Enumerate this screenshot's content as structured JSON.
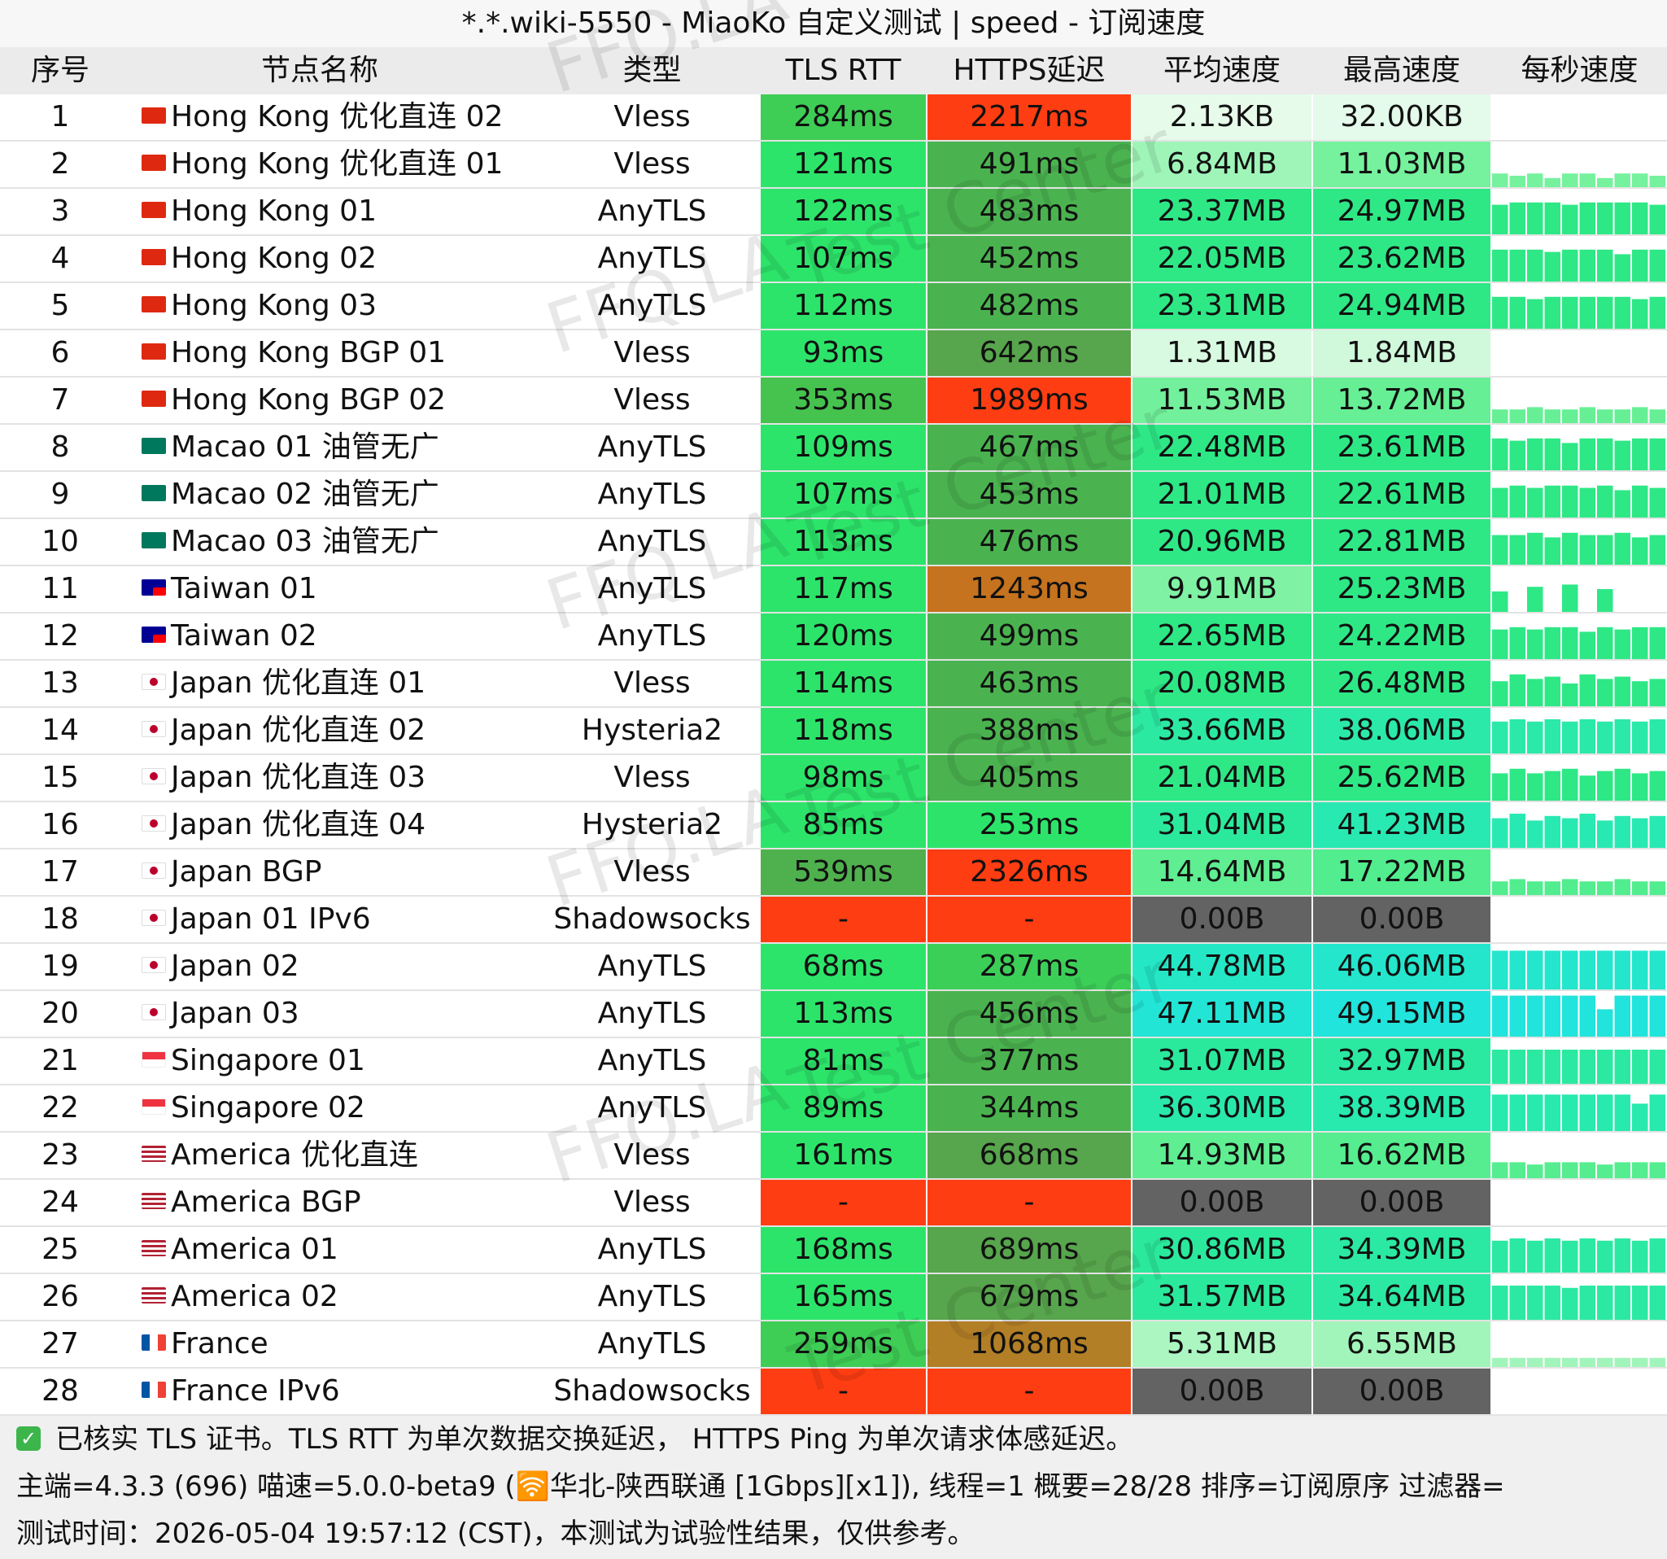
{
  "window": {
    "title": "*.*.wiki-5550 - MiaoKo 自定义测试 | speed - 订阅速度"
  },
  "headers": [
    "序号",
    "节点名称",
    "类型",
    "TLS RTT",
    "HTTPS延迟",
    "平均速度",
    "最高速度",
    "每秒速度"
  ],
  "watermark": [
    "FFQ.LA",
    "Test Center"
  ],
  "colors": {
    "red": "#fe3d12",
    "gray": "#636363",
    "sparkline": "#2ee886"
  },
  "rows": [
    {
      "idx": "1",
      "flag": "hk",
      "name": "Hong Kong 优化直连 02",
      "type": "Vless",
      "tls": "284ms",
      "tls_color": "#3ecd55",
      "https": "2217ms",
      "https_color": "#fe3d12",
      "avg": "2.13KB",
      "avg_color": "#e6fbea",
      "max": "32.00KB",
      "max_color": "#e4faea",
      "spark": []
    },
    {
      "idx": "2",
      "flag": "hk",
      "name": "Hong Kong 优化直连 01",
      "type": "Vless",
      "tls": "121ms",
      "tls_color": "#2de46a",
      "https": "491ms",
      "https_color": "#4ab34f",
      "avg": "6.84MB",
      "avg_color": "#9ff5b8",
      "max": "11.03MB",
      "max_color": "#76f19d",
      "spark": [
        0.3,
        0.25,
        0.3,
        0.2,
        0.3,
        0.3,
        0.2,
        0.3,
        0.3,
        0.25
      ]
    },
    {
      "idx": "3",
      "flag": "hk",
      "name": "Hong Kong 01",
      "type": "AnyTLS",
      "tls": "122ms",
      "tls_color": "#2de46a",
      "https": "483ms",
      "https_color": "#4ab34f",
      "avg": "23.37MB",
      "avg_color": "#2ee886",
      "max": "24.97MB",
      "max_color": "#2ee886",
      "spark": [
        0.65,
        0.7,
        0.7,
        0.7,
        0.65,
        0.7,
        0.7,
        0.7,
        0.7,
        0.65
      ]
    },
    {
      "idx": "4",
      "flag": "hk",
      "name": "Hong Kong 02",
      "type": "AnyTLS",
      "tls": "107ms",
      "tls_color": "#2de46a",
      "https": "452ms",
      "https_color": "#4ab34f",
      "avg": "22.05MB",
      "avg_color": "#2ee886",
      "max": "23.62MB",
      "max_color": "#2ee886",
      "spark": [
        0.7,
        0.7,
        0.7,
        0.65,
        0.7,
        0.7,
        0.7,
        0.6,
        0.7,
        0.7
      ]
    },
    {
      "idx": "5",
      "flag": "hk",
      "name": "Hong Kong 03",
      "type": "AnyTLS",
      "tls": "112ms",
      "tls_color": "#2de46a",
      "https": "482ms",
      "https_color": "#4ab34f",
      "avg": "23.31MB",
      "avg_color": "#2ee886",
      "max": "24.94MB",
      "max_color": "#2ee886",
      "spark": [
        0.7,
        0.7,
        0.65,
        0.7,
        0.7,
        0.7,
        0.7,
        0.7,
        0.65,
        0.7
      ]
    },
    {
      "idx": "6",
      "flag": "hk",
      "name": "Hong Kong BGP 01",
      "type": "Vless",
      "tls": "93ms",
      "tls_color": "#2de46a",
      "https": "642ms",
      "https_color": "#57a54c",
      "avg": "1.31MB",
      "avg_color": "#d8faE1",
      "max": "1.84MB",
      "max_color": "#d0f8db",
      "spark": []
    },
    {
      "idx": "7",
      "flag": "hk",
      "name": "Hong Kong BGP 02",
      "type": "Vless",
      "tls": "353ms",
      "tls_color": "#45c34e",
      "https": "1989ms",
      "https_color": "#fe3d12",
      "avg": "11.53MB",
      "avg_color": "#72f09b",
      "max": "13.72MB",
      "max_color": "#66ef94",
      "spark": [
        0.3,
        0.3,
        0.35,
        0.3,
        0.3,
        0.35,
        0.3,
        0.3,
        0.35,
        0.3
      ]
    },
    {
      "idx": "8",
      "flag": "mo",
      "name": "Macao 01 油管无广",
      "type": "AnyTLS",
      "tls": "109ms",
      "tls_color": "#2de46a",
      "https": "467ms",
      "https_color": "#4ab34f",
      "avg": "22.48MB",
      "avg_color": "#2ee886",
      "max": "23.61MB",
      "max_color": "#2ee886",
      "spark": [
        0.7,
        0.65,
        0.7,
        0.7,
        0.6,
        0.7,
        0.7,
        0.65,
        0.7,
        0.7
      ]
    },
    {
      "idx": "9",
      "flag": "mo",
      "name": "Macao 02 油管无广",
      "type": "AnyTLS",
      "tls": "107ms",
      "tls_color": "#2de46a",
      "https": "453ms",
      "https_color": "#4ab34f",
      "avg": "21.01MB",
      "avg_color": "#2ee886",
      "max": "22.61MB",
      "max_color": "#2ee886",
      "spark": [
        0.65,
        0.7,
        0.65,
        0.7,
        0.7,
        0.65,
        0.7,
        0.6,
        0.7,
        0.65
      ]
    },
    {
      "idx": "10",
      "flag": "mo",
      "name": "Macao 03 油管无广",
      "type": "AnyTLS",
      "tls": "113ms",
      "tls_color": "#2de46a",
      "https": "476ms",
      "https_color": "#4ab34f",
      "avg": "20.96MB",
      "avg_color": "#2ee886",
      "max": "22.81MB",
      "max_color": "#2ee886",
      "spark": [
        0.65,
        0.65,
        0.7,
        0.6,
        0.7,
        0.65,
        0.65,
        0.7,
        0.6,
        0.65
      ]
    },
    {
      "idx": "11",
      "flag": "tw",
      "name": "Taiwan 01",
      "type": "AnyTLS",
      "tls": "117ms",
      "tls_color": "#2de46a",
      "https": "1243ms",
      "https_color": "#c5731f",
      "avg": "9.91MB",
      "avg_color": "#7ff2a4",
      "max": "25.23MB",
      "max_color": "#2ee886",
      "spark": [
        0.45,
        0.0,
        0.55,
        0.0,
        0.6,
        0.0,
        0.5,
        0.0,
        0.0,
        0.0
      ]
    },
    {
      "idx": "12",
      "flag": "tw",
      "name": "Taiwan 02",
      "type": "AnyTLS",
      "tls": "120ms",
      "tls_color": "#2de46a",
      "https": "499ms",
      "https_color": "#4ab34f",
      "avg": "22.65MB",
      "avg_color": "#2ee886",
      "max": "24.22MB",
      "max_color": "#2ee886",
      "spark": [
        0.65,
        0.7,
        0.65,
        0.7,
        0.7,
        0.6,
        0.7,
        0.65,
        0.7,
        0.7
      ]
    },
    {
      "idx": "13",
      "flag": "jp",
      "name": "Japan 优化直连 01",
      "type": "Vless",
      "tls": "114ms",
      "tls_color": "#2de46a",
      "https": "463ms",
      "https_color": "#4ab34f",
      "avg": "20.08MB",
      "avg_color": "#2ee886",
      "max": "26.48MB",
      "max_color": "#2ee886",
      "spark": [
        0.55,
        0.7,
        0.6,
        0.65,
        0.5,
        0.7,
        0.6,
        0.65,
        0.55,
        0.6
      ]
    },
    {
      "idx": "14",
      "flag": "jp",
      "name": "Japan 优化直连 02",
      "type": "Hysteria2",
      "tls": "118ms",
      "tls_color": "#2de46a",
      "https": "388ms",
      "https_color": "#4ab34f",
      "avg": "33.66MB",
      "avg_color": "#2be9a1",
      "max": "38.06MB",
      "max_color": "#2be9a8",
      "spark": [
        0.7,
        0.75,
        0.7,
        0.75,
        0.7,
        0.75,
        0.7,
        0.75,
        0.7,
        0.75
      ]
    },
    {
      "idx": "15",
      "flag": "jp",
      "name": "Japan 优化直连 03",
      "type": "Vless",
      "tls": "98ms",
      "tls_color": "#2de46a",
      "https": "405ms",
      "https_color": "#4ab34f",
      "avg": "21.04MB",
      "avg_color": "#2ee886",
      "max": "25.62MB",
      "max_color": "#2ee886",
      "spark": [
        0.6,
        0.7,
        0.6,
        0.65,
        0.7,
        0.55,
        0.65,
        0.7,
        0.6,
        0.65
      ]
    },
    {
      "idx": "16",
      "flag": "jp",
      "name": "Japan 优化直连 04",
      "type": "Hysteria2",
      "tls": "85ms",
      "tls_color": "#2de46a",
      "https": "253ms",
      "https_color": "#2de46a",
      "avg": "31.04MB",
      "avg_color": "#2be99c",
      "max": "41.23MB",
      "max_color": "#29e9b2",
      "spark": [
        0.65,
        0.75,
        0.6,
        0.7,
        0.65,
        0.75,
        0.6,
        0.7,
        0.65,
        0.7
      ]
    },
    {
      "idx": "17",
      "flag": "jp",
      "name": "Japan BGP",
      "type": "Vless",
      "tls": "539ms",
      "tls_color": "#4fb14e",
      "https": "2326ms",
      "https_color": "#fe3d12",
      "avg": "14.64MB",
      "avg_color": "#5fee91",
      "max": "17.22MB",
      "max_color": "#52ed8e",
      "spark": [
        0.3,
        0.35,
        0.3,
        0.3,
        0.35,
        0.3,
        0.3,
        0.35,
        0.3,
        0.3
      ]
    },
    {
      "idx": "18",
      "flag": "jp",
      "name": "Japan 01 IPv6",
      "type": "Shadowsocks",
      "tls": "-",
      "tls_color": "#fe3d12",
      "https": "-",
      "https_color": "#fe3d12",
      "avg": "0.00B",
      "avg_color": "#636363",
      "max": "0.00B",
      "max_color": "#636363",
      "spark": []
    },
    {
      "idx": "19",
      "flag": "jp",
      "name": "Japan 02",
      "type": "AnyTLS",
      "tls": "68ms",
      "tls_color": "#2de46a",
      "https": "287ms",
      "https_color": "#3ccf58",
      "avg": "44.78MB",
      "avg_color": "#24e7c6",
      "max": "46.06MB",
      "max_color": "#23e6cd",
      "spark": [
        0.85,
        0.85,
        0.85,
        0.85,
        0.85,
        0.85,
        0.85,
        0.85,
        0.85,
        0.85
      ]
    },
    {
      "idx": "20",
      "flag": "jp",
      "name": "Japan 03",
      "type": "AnyTLS",
      "tls": "113ms",
      "tls_color": "#2de46a",
      "https": "456ms",
      "https_color": "#4ab34f",
      "avg": "47.11MB",
      "avg_color": "#22e5d6",
      "max": "49.15MB",
      "max_color": "#21e4dc",
      "spark": [
        0.9,
        0.9,
        0.9,
        0.9,
        0.9,
        0.9,
        0.6,
        0.9,
        0.9,
        0.9
      ]
    },
    {
      "idx": "21",
      "flag": "sg",
      "name": "Singapore 01",
      "type": "AnyTLS",
      "tls": "81ms",
      "tls_color": "#2de46a",
      "https": "377ms",
      "https_color": "#4ab34f",
      "avg": "31.07MB",
      "avg_color": "#2be99c",
      "max": "32.97MB",
      "max_color": "#2be9a0",
      "spark": [
        0.75,
        0.75,
        0.75,
        0.75,
        0.75,
        0.75,
        0.75,
        0.75,
        0.75,
        0.75
      ]
    },
    {
      "idx": "22",
      "flag": "sg",
      "name": "Singapore 02",
      "type": "AnyTLS",
      "tls": "89ms",
      "tls_color": "#2de46a",
      "https": "344ms",
      "https_color": "#4ab34f",
      "avg": "36.30MB",
      "avg_color": "#29e9aa",
      "max": "38.39MB",
      "max_color": "#28e9ae",
      "spark": [
        0.8,
        0.8,
        0.8,
        0.8,
        0.8,
        0.8,
        0.8,
        0.8,
        0.6,
        0.8
      ]
    },
    {
      "idx": "23",
      "flag": "us",
      "name": "America 优化直连",
      "type": "Vless",
      "tls": "161ms",
      "tls_color": "#2de46a",
      "https": "668ms",
      "https_color": "#57a54c",
      "avg": "14.93MB",
      "avg_color": "#5fee91",
      "max": "16.62MB",
      "max_color": "#55ed8f",
      "spark": [
        0.35,
        0.35,
        0.3,
        0.35,
        0.35,
        0.35,
        0.3,
        0.35,
        0.35,
        0.35
      ]
    },
    {
      "idx": "24",
      "flag": "us",
      "name": "America BGP",
      "type": "Vless",
      "tls": "-",
      "tls_color": "#fe3d12",
      "https": "-",
      "https_color": "#fe3d12",
      "avg": "0.00B",
      "avg_color": "#636363",
      "max": "0.00B",
      "max_color": "#636363",
      "spark": []
    },
    {
      "idx": "25",
      "flag": "us",
      "name": "America 01",
      "type": "AnyTLS",
      "tls": "168ms",
      "tls_color": "#2de46a",
      "https": "689ms",
      "https_color": "#57a54c",
      "avg": "30.86MB",
      "avg_color": "#2be99c",
      "max": "34.39MB",
      "max_color": "#2be9a3",
      "spark": [
        0.7,
        0.75,
        0.7,
        0.75,
        0.7,
        0.75,
        0.7,
        0.75,
        0.7,
        0.75
      ]
    },
    {
      "idx": "26",
      "flag": "us",
      "name": "America 02",
      "type": "AnyTLS",
      "tls": "165ms",
      "tls_color": "#2de46a",
      "https": "679ms",
      "https_color": "#57a54c",
      "avg": "31.57MB",
      "avg_color": "#2be99c",
      "max": "34.64MB",
      "max_color": "#2be9a3",
      "spark": [
        0.75,
        0.75,
        0.75,
        0.75,
        0.7,
        0.75,
        0.75,
        0.75,
        0.75,
        0.75
      ]
    },
    {
      "idx": "27",
      "flag": "fr",
      "name": "France",
      "type": "AnyTLS",
      "tls": "259ms",
      "tls_color": "#3ecd55",
      "https": "1068ms",
      "https_color": "#b27f26",
      "avg": "5.31MB",
      "avg_color": "#abf6c1",
      "max": "6.55MB",
      "max_color": "#a2f5ba",
      "spark": [
        0.2,
        0.2,
        0.2,
        0.2,
        0.2,
        0.2,
        0.2,
        0.2,
        0.2,
        0.2
      ]
    },
    {
      "idx": "28",
      "flag": "fr",
      "name": "France IPv6",
      "type": "Shadowsocks",
      "tls": "-",
      "tls_color": "#fe3d12",
      "https": "-",
      "https_color": "#fe3d12",
      "avg": "0.00B",
      "avg_color": "#636363",
      "max": "0.00B",
      "max_color": "#636363",
      "spark": []
    }
  ],
  "footer": {
    "line1": "已核实 TLS 证书。TLS RTT 为单次数据交换延迟， HTTPS Ping 为单次请求体感延迟。",
    "line2": "主端=4.3.3 (696) 喵速=5.0.0-beta9 (🛜华北-陕西联通 [1Gbps][x1]), 线程=1 概要=28/28 排序=订阅原序 过滤器=",
    "line3": "测试时间：2026-05-04 19:57:12 (CST)，本测试为试验性结果，仅供参考。"
  }
}
